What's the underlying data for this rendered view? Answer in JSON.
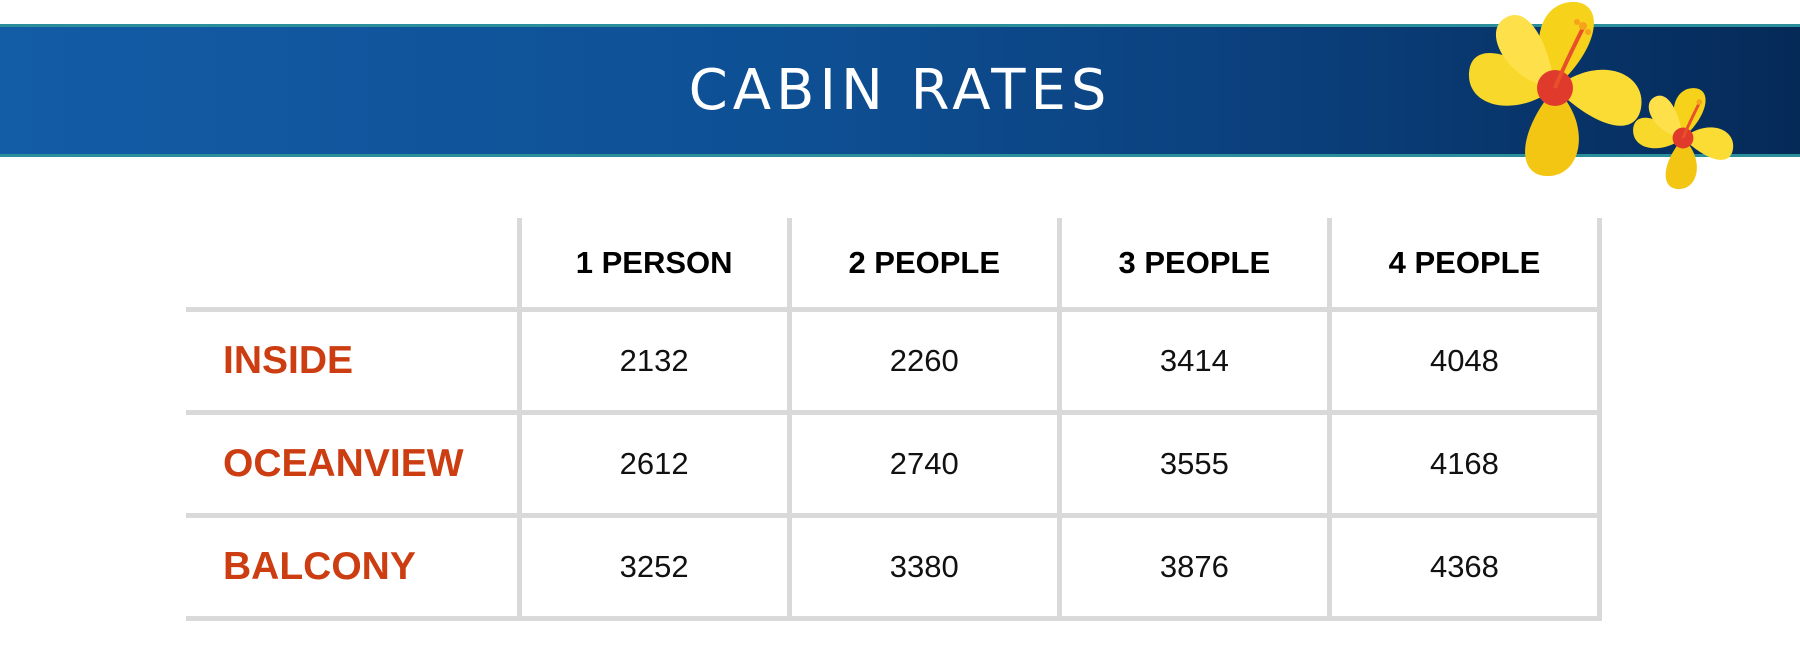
{
  "banner": {
    "title": "CABIN RATES",
    "colors": {
      "gradient_start": "#135ca6",
      "gradient_end": "#052a58",
      "border": "#2a8f9a"
    },
    "decoration": "hibiscus-flowers"
  },
  "rates_table": {
    "columns": [
      "",
      "1 PERSON",
      "2 PEOPLE",
      "3 PEOPLE",
      "4 PEOPLE"
    ],
    "rows": [
      {
        "cabin": "INSIDE",
        "values": [
          "2132",
          "2260",
          "3414",
          "4048"
        ]
      },
      {
        "cabin": "OCEANVIEW",
        "values": [
          "2612",
          "2740",
          "3555",
          "4168"
        ]
      },
      {
        "cabin": "BALCONY",
        "values": [
          "3252",
          "3380",
          "3876",
          "4368"
        ]
      }
    ],
    "colors": {
      "row_label": "#cc3d12",
      "grid": "#d9d9d9"
    }
  }
}
